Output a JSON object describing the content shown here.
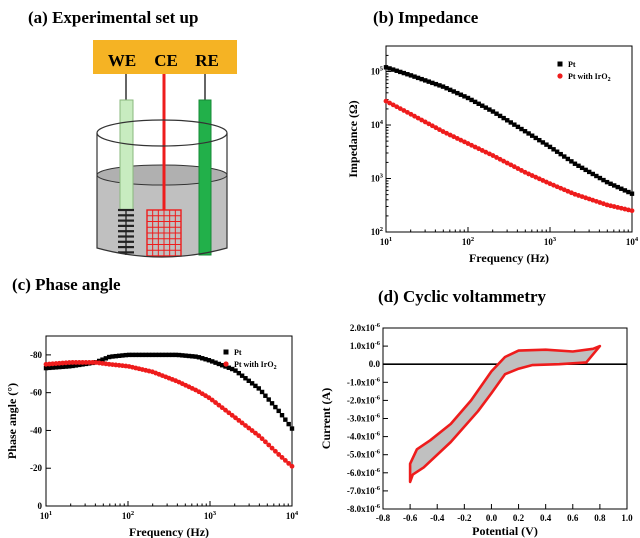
{
  "panels": {
    "a": {
      "title": "(a) Experimental set up",
      "electrodes": [
        "WE",
        "CE",
        "RE"
      ]
    },
    "b": {
      "title": "(b) Impedance"
    },
    "c": {
      "title": "(c) Phase angle"
    },
    "d": {
      "title": "(d) Cyclic voltammetry"
    }
  },
  "colors": {
    "pt": "#000000",
    "ptiro2": "#ee1c1c",
    "bar": "#f5b324",
    "we": "#c8ecc0",
    "re": "#22b04a",
    "solution": "#c0c0c0"
  },
  "chart_data": [
    {
      "id": "impedance",
      "type": "scatter",
      "xlabel": "Frequency (Hz)",
      "ylabel": "Impedance (Ω)",
      "xscale": "log",
      "yscale": "log",
      "xlim": [
        10,
        10000
      ],
      "ylim": [
        100,
        300000
      ],
      "xticks": [
        {
          "v": 10,
          "b": "10",
          "e": "1"
        },
        {
          "v": 100,
          "b": "10",
          "e": "2"
        },
        {
          "v": 1000,
          "b": "10",
          "e": "3"
        },
        {
          "v": 10000,
          "b": "10",
          "e": "4"
        }
      ],
      "yticks": [
        {
          "v": 100,
          "b": "10",
          "e": "2"
        },
        {
          "v": 1000,
          "b": "10",
          "e": "3"
        },
        {
          "v": 10000,
          "b": "10",
          "e": "4"
        },
        {
          "v": 100000,
          "b": "10",
          "e": "5"
        }
      ],
      "legend_position": "top-right",
      "series": [
        {
          "name": "Pt",
          "marker": "square",
          "color": "#000000",
          "x": [
            10,
            20,
            50,
            100,
            200,
            500,
            1000,
            2000,
            5000,
            10000
          ],
          "y": [
            120000,
            85000,
            52000,
            32000,
            18000,
            7600,
            3900,
            1900,
            850,
            520
          ]
        },
        {
          "name": "Pt with IrO",
          "name_sub": "2",
          "marker": "circle",
          "color": "#ee1c1c",
          "x": [
            10,
            20,
            50,
            100,
            200,
            500,
            1000,
            2000,
            5000,
            10000
          ],
          "y": [
            28000,
            16000,
            7500,
            4500,
            2700,
            1300,
            800,
            510,
            320,
            250
          ]
        }
      ]
    },
    {
      "id": "phase",
      "type": "scatter",
      "xlabel": "Frequency (Hz)",
      "ylabel": "Phase angle (°)",
      "xscale": "log",
      "xlim": [
        10,
        10000
      ],
      "ylim": [
        0,
        -90
      ],
      "xticks": [
        {
          "v": 10,
          "b": "10",
          "e": "1"
        },
        {
          "v": 100,
          "b": "10",
          "e": "2"
        },
        {
          "v": 1000,
          "b": "10",
          "e": "3"
        },
        {
          "v": 10000,
          "b": "10",
          "e": "4"
        }
      ],
      "yticks": [
        {
          "v": 0,
          "l": "0"
        },
        {
          "v": -20,
          "l": "-20"
        },
        {
          "v": -40,
          "l": "-40"
        },
        {
          "v": -60,
          "l": "-60"
        },
        {
          "v": -80,
          "l": "-80"
        }
      ],
      "legend_position": "top-right",
      "series": [
        {
          "name": "Pt",
          "marker": "square",
          "color": "#000000",
          "x": [
            10,
            20,
            40,
            60,
            100,
            200,
            400,
            700,
            1000,
            2000,
            4000,
            7000,
            10000
          ],
          "y": [
            -73,
            -74,
            -76,
            -79,
            -80,
            -80,
            -80,
            -79,
            -77,
            -72,
            -62,
            -50,
            -41
          ]
        },
        {
          "name": "Pt with IrO",
          "name_sub": "2",
          "marker": "circle",
          "color": "#ee1c1c",
          "x": [
            10,
            20,
            40,
            60,
            100,
            200,
            400,
            700,
            1000,
            2000,
            4000,
            7000,
            10000
          ],
          "y": [
            -75,
            -76,
            -76,
            -75,
            -74,
            -71,
            -66,
            -61,
            -57,
            -47,
            -37,
            -27,
            -21
          ]
        }
      ]
    },
    {
      "id": "cv",
      "type": "line",
      "xlabel": "Potential (V)",
      "ylabel": "Current (A)",
      "xlim": [
        -0.8,
        1.0
      ],
      "ylim": [
        -8e-06,
        2e-06
      ],
      "xticks": [
        {
          "v": -0.8,
          "l": "-0.8"
        },
        {
          "v": -0.6,
          "l": "-0.6"
        },
        {
          "v": -0.4,
          "l": "-0.4"
        },
        {
          "v": -0.2,
          "l": "-0.2"
        },
        {
          "v": 0.0,
          "l": "0.0"
        },
        {
          "v": 0.2,
          "l": "0.2"
        },
        {
          "v": 0.4,
          "l": "0.4"
        },
        {
          "v": 0.6,
          "l": "0.6"
        },
        {
          "v": 0.8,
          "l": "0.8"
        },
        {
          "v": 1.0,
          "l": "1.0"
        }
      ],
      "yticks": [
        {
          "v": 2e-06,
          "m": "2.0x10",
          "e": "-6"
        },
        {
          "v": 1e-06,
          "m": "1.0x10",
          "e": "-6"
        },
        {
          "v": 0,
          "m": "0.0",
          "e": ""
        },
        {
          "v": -1e-06,
          "m": "-1.0x10",
          "e": "-6"
        },
        {
          "v": -2e-06,
          "m": "-2.0x10",
          "e": "-6"
        },
        {
          "v": -3e-06,
          "m": "-3.0x10",
          "e": "-6"
        },
        {
          "v": -4e-06,
          "m": "-4.0x10",
          "e": "-6"
        },
        {
          "v": -5e-06,
          "m": "-5.0x10",
          "e": "-6"
        },
        {
          "v": -6e-06,
          "m": "-6.0x10",
          "e": "-6"
        },
        {
          "v": -7e-06,
          "m": "-7.0x10",
          "e": "-6"
        },
        {
          "v": -8e-06,
          "m": "-8.0x10",
          "e": "-6"
        }
      ],
      "zero_line": true,
      "loop": {
        "upper": {
          "x": [
            -0.6,
            -0.55,
            -0.45,
            -0.3,
            -0.15,
            0.0,
            0.1,
            0.2,
            0.4,
            0.6,
            0.75,
            0.8
          ],
          "y": [
            -5.5e-06,
            -4.7e-06,
            -4.2e-06,
            -3.3e-06,
            -2e-06,
            -4e-07,
            4e-07,
            7.5e-07,
            8e-07,
            7e-07,
            8.5e-07,
            1e-06
          ]
        },
        "lower": {
          "x": [
            0.8,
            0.7,
            0.5,
            0.3,
            0.2,
            0.1,
            0.0,
            -0.1,
            -0.3,
            -0.5,
            -0.58,
            -0.6
          ],
          "y": [
            1e-06,
            1e-07,
            0.0,
            -5e-08,
            -2.5e-07,
            -5.5e-07,
            -1.6e-06,
            -2.6e-06,
            -4.3e-06,
            -5.7e-06,
            -6.1e-06,
            -6.5e-06
          ]
        },
        "color": "#ee1c1c",
        "fill": "#c0c0c0"
      }
    }
  ]
}
